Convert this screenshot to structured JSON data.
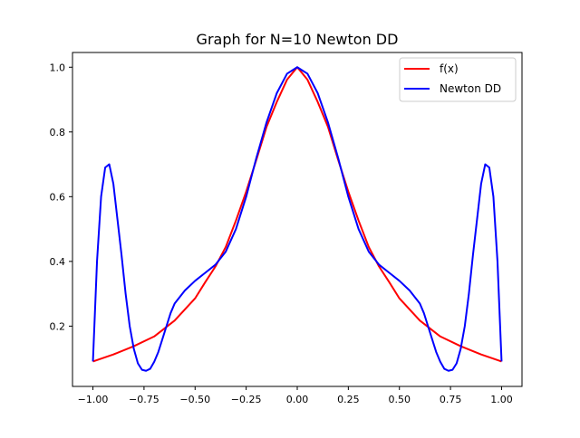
{
  "chart_data": {
    "type": "line",
    "title": "Graph for N=10 Newton DD",
    "xlabel": "",
    "ylabel": "",
    "xlim": [
      -1.1,
      1.1
    ],
    "ylim": [
      0.0137,
      1.0455
    ],
    "x_ticks": [
      -1.0,
      -0.75,
      -0.5,
      -0.25,
      0.0,
      0.25,
      0.5,
      0.75,
      1.0
    ],
    "x_tick_labels": [
      "−1.00",
      "−0.75",
      "−0.50",
      "−0.25",
      "0.00",
      "0.25",
      "0.50",
      "0.75",
      "1.00"
    ],
    "y_ticks": [
      0.2,
      0.4,
      0.6,
      0.8,
      1.0
    ],
    "y_tick_labels": [
      "0.2",
      "0.4",
      "0.6",
      "0.8",
      "1.0"
    ],
    "grid": false,
    "legend_position": "upper right",
    "series": [
      {
        "name": "f(x)",
        "color": "#ff0000",
        "x": [
          -1.0,
          -0.9,
          -0.8,
          -0.7,
          -0.6,
          -0.5,
          -0.45,
          -0.4,
          -0.35,
          -0.3,
          -0.25,
          -0.2,
          -0.15,
          -0.1,
          -0.05,
          0.0,
          0.05,
          0.1,
          0.15,
          0.2,
          0.25,
          0.3,
          0.35,
          0.4,
          0.45,
          0.5,
          0.6,
          0.7,
          0.8,
          0.9,
          1.0
        ],
        "y": [
          0.0909,
          0.1125,
          0.1379,
          0.1681,
          0.2174,
          0.2857,
          0.3361,
          0.3846,
          0.4444,
          0.5263,
          0.6154,
          0.7143,
          0.8163,
          0.8929,
          0.9615,
          1.0,
          0.9615,
          0.8929,
          0.8163,
          0.7143,
          0.6154,
          0.5263,
          0.4444,
          0.3846,
          0.3361,
          0.2857,
          0.2174,
          0.1681,
          0.1379,
          0.1125,
          0.0909
        ]
      },
      {
        "name": "Newton DD",
        "color": "#0000ff",
        "x": [
          -1.0,
          -0.98,
          -0.96,
          -0.94,
          -0.92,
          -0.9,
          -0.88,
          -0.86,
          -0.84,
          -0.82,
          -0.8,
          -0.78,
          -0.76,
          -0.74,
          -0.72,
          -0.7,
          -0.68,
          -0.66,
          -0.64,
          -0.62,
          -0.6,
          -0.55,
          -0.5,
          -0.45,
          -0.4,
          -0.35,
          -0.3,
          -0.25,
          -0.2,
          -0.15,
          -0.1,
          -0.05,
          0.0,
          0.05,
          0.1,
          0.15,
          0.2,
          0.25,
          0.3,
          0.35,
          0.4,
          0.45,
          0.5,
          0.55,
          0.6,
          0.62,
          0.64,
          0.66,
          0.68,
          0.7,
          0.72,
          0.74,
          0.76,
          0.78,
          0.8,
          0.82,
          0.84,
          0.86,
          0.88,
          0.9,
          0.92,
          0.94,
          0.96,
          0.98,
          1.0
        ],
        "y": [
          0.0909,
          0.4,
          0.6,
          0.69,
          0.7,
          0.64,
          0.53,
          0.42,
          0.3,
          0.2,
          0.13,
          0.085,
          0.065,
          0.062,
          0.068,
          0.09,
          0.12,
          0.16,
          0.2,
          0.24,
          0.27,
          0.31,
          0.34,
          0.365,
          0.39,
          0.43,
          0.5,
          0.6,
          0.72,
          0.83,
          0.92,
          0.98,
          1.0,
          0.98,
          0.92,
          0.83,
          0.72,
          0.6,
          0.5,
          0.43,
          0.39,
          0.365,
          0.34,
          0.31,
          0.27,
          0.24,
          0.2,
          0.16,
          0.12,
          0.09,
          0.068,
          0.062,
          0.065,
          0.085,
          0.13,
          0.2,
          0.3,
          0.42,
          0.53,
          0.64,
          0.7,
          0.69,
          0.6,
          0.4,
          0.0909
        ]
      }
    ]
  }
}
